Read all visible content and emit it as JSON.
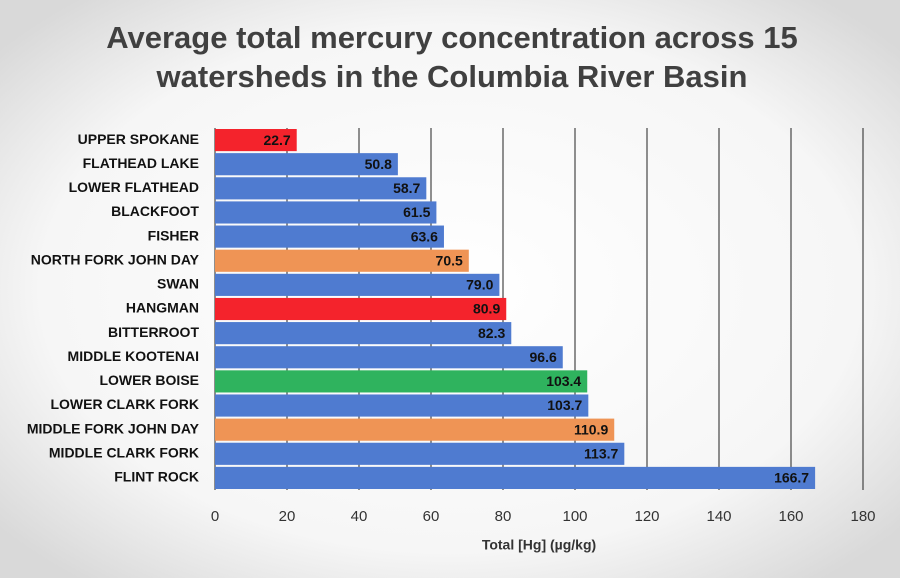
{
  "chart_data": {
    "type": "bar",
    "orientation": "horizontal",
    "title": [
      "Average total mercury concentration across 15",
      "watersheds in the Columbia River Basin"
    ],
    "x_label": "Total [Hg] (µg/kg)",
    "categories": [
      "UPPER SPOKANE",
      "FLATHEAD LAKE",
      "LOWER FLATHEAD",
      "BLACKFOOT",
      "FISHER",
      "NORTH FORK JOHN DAY",
      "SWAN",
      "HANGMAN",
      "BITTERROOT",
      "MIDDLE KOOTENAI",
      "LOWER BOISE",
      "LOWER CLARK FORK",
      "MIDDLE FORK JOHN DAY",
      "MIDDLE CLARK FORK",
      "FLINT ROCK"
    ],
    "values": [
      22.7,
      50.8,
      58.7,
      61.5,
      63.6,
      70.5,
      79,
      80.9,
      82.3,
      96.6,
      103.4,
      103.7,
      110.9,
      113.7,
      166.7
    ],
    "value_labels": [
      "22.7",
      "50.8",
      "58.7",
      "61.5",
      "63.6",
      "70.5",
      "79.0",
      "80.9",
      "82.3",
      "96.6",
      "103.4",
      "103.7",
      "110.9",
      "113.7",
      "166.7"
    ],
    "colors": [
      "#f4232c",
      "#4f7bd0",
      "#4f7bd0",
      "#4f7bd0",
      "#4f7bd0",
      "#ef9455",
      "#4f7bd0",
      "#f4232c",
      "#4f7bd0",
      "#4f7bd0",
      "#2fb35e",
      "#4f7bd0",
      "#ef9455",
      "#4f7bd0",
      "#4f7bd0"
    ],
    "xlim": [
      0,
      180
    ],
    "xticks": [
      0,
      20,
      40,
      60,
      80,
      100,
      120,
      140,
      160,
      180
    ],
    "grid": true
  }
}
